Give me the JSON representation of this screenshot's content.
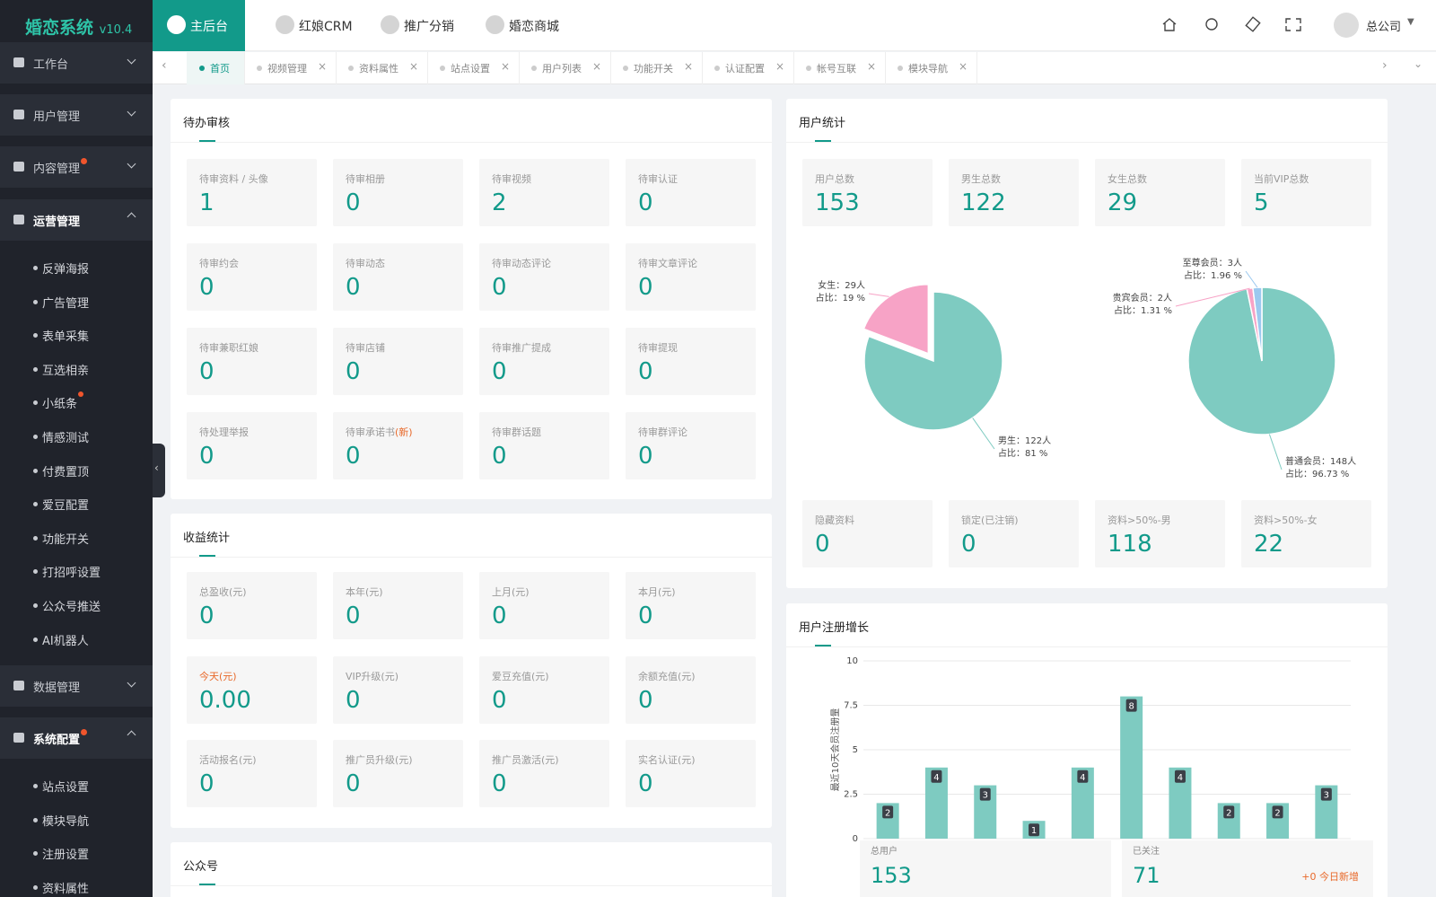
{
  "sidebar": {
    "logo": "婚恋系统",
    "version": "v10.4",
    "menu": [
      {
        "label": "工作台"
      },
      {
        "label": "用户管理"
      },
      {
        "label": "内容管理",
        "dot": true
      },
      {
        "label": "运营管理",
        "open": true,
        "children": [
          {
            "label": "反弹海报"
          },
          {
            "label": "广告管理"
          },
          {
            "label": "表单采集"
          },
          {
            "label": "互选相亲"
          },
          {
            "label": "小纸条",
            "dot": true
          },
          {
            "label": "情感测试"
          },
          {
            "label": "付费置顶"
          },
          {
            "label": "爱豆配置"
          },
          {
            "label": "功能开关"
          },
          {
            "label": "打招呼设置"
          },
          {
            "label": "公众号推送"
          },
          {
            "label": "AI机器人"
          }
        ]
      },
      {
        "label": "数据管理"
      },
      {
        "label": "系统配置",
        "dot": true,
        "open": true,
        "children": [
          {
            "label": "站点设置"
          },
          {
            "label": "模块导航"
          },
          {
            "label": "注册设置"
          },
          {
            "label": "资料属性"
          }
        ]
      }
    ]
  },
  "topnav": {
    "tabs": [
      "主后台",
      "红娘CRM",
      "推广分销",
      "婚恋商城"
    ],
    "user": "总公司"
  },
  "tabs": [
    "首页",
    "视频管理",
    "资料属性",
    "站点设置",
    "用户列表",
    "功能开关",
    "认证配置",
    "帐号互联",
    "模块导航"
  ],
  "pending": {
    "title": "待办审核",
    "items": [
      {
        "label": "待审资料 / 头像",
        "value": 1
      },
      {
        "label": "待审相册",
        "value": 0
      },
      {
        "label": "待审视频",
        "value": 2
      },
      {
        "label": "待审认证",
        "value": 0
      },
      {
        "label": "待审约会",
        "value": 0
      },
      {
        "label": "待审动态",
        "value": 0
      },
      {
        "label": "待审动态评论",
        "value": 0
      },
      {
        "label": "待审文章评论",
        "value": 0
      },
      {
        "label": "待审兼职红娘",
        "value": 0
      },
      {
        "label": "待审店铺",
        "value": 0
      },
      {
        "label": "待审推广提成",
        "value": 0
      },
      {
        "label": "待审提现",
        "value": 0
      },
      {
        "label": "待处理举报",
        "value": 0
      },
      {
        "label": "待审承诺书",
        "tag": "(新)",
        "value": 0
      },
      {
        "label": "待审群话题",
        "value": 0
      },
      {
        "label": "待审群评论",
        "value": 0
      }
    ]
  },
  "income": {
    "title": "收益统计",
    "items": [
      {
        "label": "总盈收(元)",
        "value": 0
      },
      {
        "label": "本年(元)",
        "value": 0
      },
      {
        "label": "上月(元)",
        "value": 0
      },
      {
        "label": "本月(元)",
        "value": 0
      },
      {
        "label": "今天(元)",
        "value": "0.00",
        "label_color": "#e8692a"
      },
      {
        "label": "VIP升级(元)",
        "value": 0
      },
      {
        "label": "爱豆充值(元)",
        "value": 0
      },
      {
        "label": "余额充值(元)",
        "value": 0
      },
      {
        "label": "活动报名(元)",
        "value": 0
      },
      {
        "label": "推广员升级(元)",
        "value": 0
      },
      {
        "label": "推广员激活(元)",
        "value": 0
      },
      {
        "label": "实名认证(元)",
        "value": 0
      }
    ]
  },
  "wechat": {
    "title": "公众号"
  },
  "user_stats": {
    "title": "用户统计",
    "items": [
      {
        "label": "用户总数",
        "value": 153
      },
      {
        "label": "男生总数",
        "value": 122
      },
      {
        "label": "女生总数",
        "value": 29
      },
      {
        "label": "当前VIP总数",
        "value": 5
      }
    ],
    "gender_pie": {
      "type": "pie",
      "slices": [
        {
          "value": 122,
          "label": "男生：122人",
          "share": "占比：81 %",
          "color": "#7ecbc1"
        },
        {
          "value": 29,
          "label": "女生：29人",
          "share": "占比：19 %",
          "color": "#f7a3c6",
          "explode": true
        }
      ]
    },
    "vip_pie": {
      "type": "pie",
      "slices": [
        {
          "value": 148,
          "label": "普通会员：148人",
          "share": "占比：96.73 %",
          "color": "#7ecbc1"
        },
        {
          "value": 2,
          "label": "贵宾会员：2人",
          "share": "占比：1.31 %",
          "color": "#f7a3c6"
        },
        {
          "value": 3,
          "label": "至尊会员：3人",
          "share": "占比：1.96 %",
          "color": "#9cc9ef"
        }
      ]
    },
    "items2": [
      {
        "label": "隐藏资料",
        "value": 0
      },
      {
        "label": "锁定(已注销)",
        "value": 0
      },
      {
        "label": "资料>50%-男",
        "value": 118
      },
      {
        "label": "资料>50%-女",
        "value": 22
      }
    ]
  },
  "growth": {
    "title": "用户注册增长",
    "chart": {
      "type": "bar",
      "y_label": "最近10天会员注册量",
      "values": [
        2,
        4,
        3,
        1,
        4,
        8,
        4,
        2,
        2,
        3
      ],
      "color": "#7ecbc1",
      "ylim": [
        0,
        10
      ],
      "yticks": [
        0,
        2.5,
        5,
        7.5,
        10
      ],
      "grid": true
    },
    "summary": [
      {
        "label": "总用户",
        "value": 153
      },
      {
        "label": "已关注",
        "value": 71,
        "note": "+0 今日新增"
      }
    ]
  }
}
